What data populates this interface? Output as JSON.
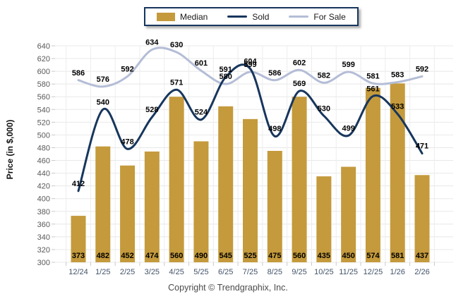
{
  "legend": {
    "items": [
      {
        "label": "Median",
        "type": "bar",
        "color": "#C49A3C"
      },
      {
        "label": "Sold",
        "type": "line",
        "color": "#17365D"
      },
      {
        "label": "For Sale",
        "type": "line",
        "color": "#B4BDD6"
      }
    ]
  },
  "footer": {
    "copyright": "Copyright © Trendgraphix, Inc."
  },
  "chart_data": {
    "type": "bar+line",
    "title": "",
    "xlabel": "",
    "ylabel": "Price (in $,000)",
    "ylim": [
      300,
      640
    ],
    "y_step": 20,
    "grid": true,
    "legend_position": "top",
    "categories": [
      "12/24",
      "1/25",
      "2/25",
      "3/25",
      "4/25",
      "5/25",
      "6/25",
      "7/25",
      "8/25",
      "9/25",
      "10/25",
      "11/25",
      "12/25",
      "1/26",
      "2/26"
    ],
    "series": [
      {
        "name": "Median",
        "type": "bar",
        "color": "#C49A3C",
        "values": [
          373,
          482,
          452,
          474,
          560,
          490,
          545,
          525,
          475,
          560,
          435,
          450,
          574,
          581,
          437
        ]
      },
      {
        "name": "Sold",
        "type": "line",
        "color": "#17365D",
        "values": [
          412,
          540,
          478,
          528,
          571,
          524,
          591,
          604,
          498,
          569,
          530,
          499,
          561,
          533,
          471
        ]
      },
      {
        "name": "For Sale",
        "type": "line",
        "color": "#B4BDD6",
        "values": [
          586,
          576,
          592,
          634,
          630,
          601,
          580,
          599,
          586,
          602,
          582,
          599,
          581,
          583,
          592
        ]
      }
    ],
    "colors": {
      "gridline": "#e8e8e8",
      "vertical_gridline": "#ededed",
      "tick": "#c9c9c9",
      "y_tick_label": "#595959",
      "x_tick_label": "#44546A",
      "data_label": "#000000"
    }
  }
}
